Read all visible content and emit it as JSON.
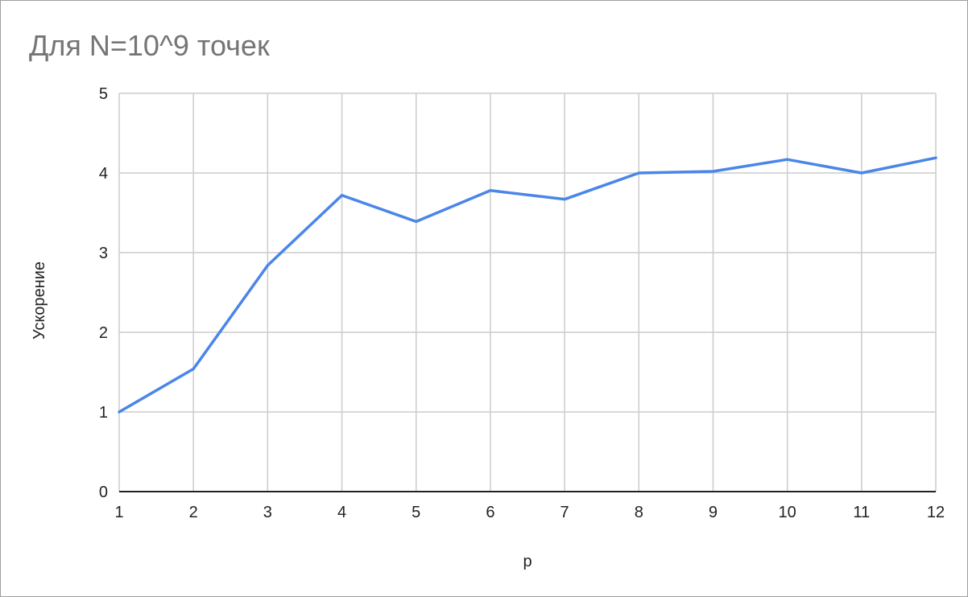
{
  "chart_data": {
    "type": "line",
    "title": "Для N=10^9 точек",
    "xlabel": "p",
    "ylabel": "Ускорение",
    "x": [
      1,
      2,
      3,
      4,
      5,
      6,
      7,
      8,
      9,
      10,
      11,
      12
    ],
    "series": [
      {
        "values": [
          1.0,
          1.54,
          2.84,
          3.72,
          3.39,
          3.78,
          3.67,
          4.0,
          4.02,
          4.17,
          4.0,
          4.19
        ]
      }
    ],
    "xlim": [
      1,
      12
    ],
    "ylim": [
      0,
      5
    ],
    "y_ticks": [
      "0",
      "1",
      "2",
      "3",
      "4",
      "5"
    ],
    "x_ticks": [
      "1",
      "2",
      "3",
      "4",
      "5",
      "6",
      "7",
      "8",
      "9",
      "10",
      "11",
      "12"
    ],
    "grid": true,
    "legend": "none",
    "colors": {
      "line": "#4a86e8",
      "grid": "#cccccc",
      "axis": "#222222",
      "title": "#757575"
    }
  }
}
